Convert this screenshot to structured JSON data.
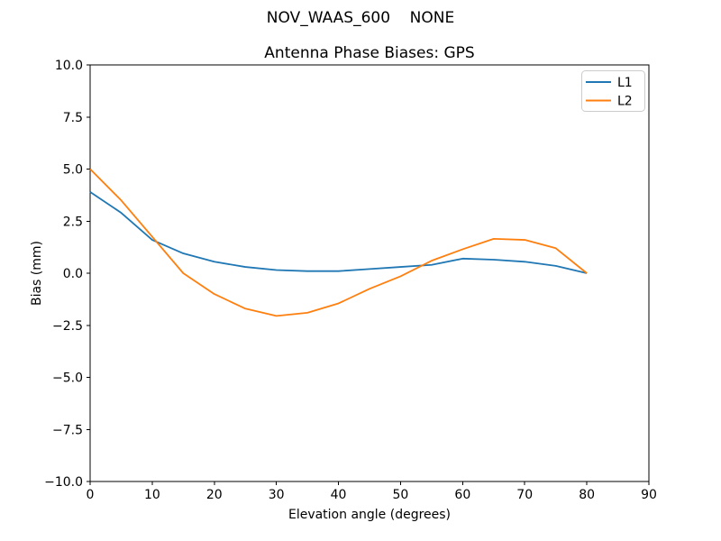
{
  "figure": {
    "suptitle": "NOV_WAAS_600    NONE"
  },
  "chart_data": {
    "type": "line",
    "suptitle": "NOV_WAAS_600    NONE",
    "title": "Antenna Phase Biases: GPS",
    "xlabel": "Elevation angle (degrees)",
    "ylabel": "Bias (mm)",
    "xlim": [
      0,
      90
    ],
    "ylim": [
      -10,
      10
    ],
    "grid": false,
    "legend_position": "upper right",
    "xticks": [
      0,
      10,
      20,
      30,
      40,
      50,
      60,
      70,
      80,
      90
    ],
    "xtick_labels": [
      "0",
      "10",
      "20",
      "30",
      "40",
      "50",
      "60",
      "70",
      "80",
      "90"
    ],
    "yticks": [
      -10,
      -7.5,
      -5,
      -2.5,
      0,
      2.5,
      5,
      7.5,
      10
    ],
    "ytick_labels": [
      "−10.0",
      "−7.5",
      "−5.0",
      "−2.5",
      "0.0",
      "2.5",
      "5.0",
      "7.5",
      "10.0"
    ],
    "x": [
      0,
      5,
      10,
      15,
      20,
      25,
      30,
      35,
      40,
      45,
      50,
      55,
      60,
      65,
      70,
      75,
      80
    ],
    "series": [
      {
        "name": "L1",
        "color": "#1f77b4",
        "values": [
          3.9,
          2.9,
          1.6,
          0.95,
          0.55,
          0.3,
          0.15,
          0.1,
          0.1,
          0.2,
          0.3,
          0.4,
          0.7,
          0.65,
          0.55,
          0.35,
          0.0
        ]
      },
      {
        "name": "L2",
        "color": "#ff7f0e",
        "values": [
          5.0,
          3.5,
          1.75,
          0.0,
          -1.0,
          -1.7,
          -2.05,
          -1.9,
          -1.45,
          -0.75,
          -0.15,
          0.6,
          1.15,
          1.65,
          1.6,
          1.2,
          0.0
        ]
      }
    ]
  },
  "legend": {
    "items": [
      {
        "label": "L1",
        "color": "#1f77b4"
      },
      {
        "label": "L2",
        "color": "#ff7f0e"
      }
    ]
  }
}
